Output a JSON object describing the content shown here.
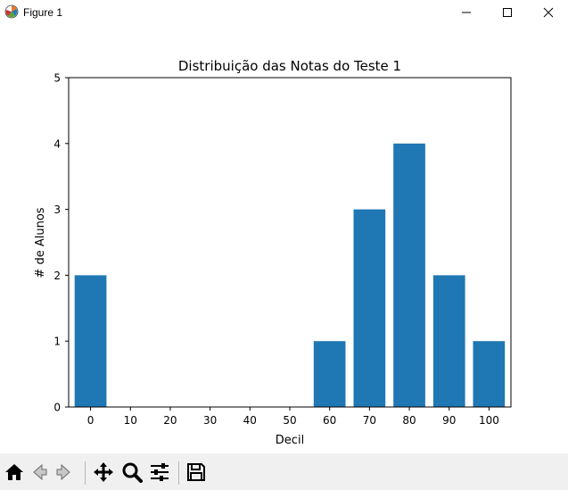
{
  "window": {
    "title": "Figure 1",
    "icon": "matplotlib-icon",
    "controls": [
      "minimize-icon",
      "maximize-icon",
      "close-icon"
    ]
  },
  "chart_data": {
    "type": "bar",
    "title": "Distribuição das Notas do Teste 1",
    "xlabel": "Decil",
    "ylabel": "# de Alunos",
    "categories": [
      "0",
      "10",
      "20",
      "30",
      "40",
      "50",
      "60",
      "70",
      "80",
      "90",
      "100"
    ],
    "x": [
      0,
      10,
      20,
      30,
      40,
      50,
      60,
      70,
      80,
      90,
      100
    ],
    "values": [
      2,
      0,
      0,
      0,
      0,
      0,
      1,
      3,
      4,
      2,
      1
    ],
    "xlim": [
      -5.5,
      105.5
    ],
    "ylim": [
      0,
      5
    ],
    "yticks": [
      0,
      1,
      2,
      3,
      4,
      5
    ],
    "bar_width": 8,
    "bar_color": "#1f77b4",
    "grid": false
  },
  "toolbar": {
    "buttons": [
      {
        "name": "home-button",
        "icon": "home-icon"
      },
      {
        "name": "back-button",
        "icon": "back-arrow-icon"
      },
      {
        "name": "forward-button",
        "icon": "forward-arrow-icon"
      },
      {
        "name": "pan-button",
        "icon": "move-icon"
      },
      {
        "name": "zoom-button",
        "icon": "magnifier-icon"
      },
      {
        "name": "configure-subplots-button",
        "icon": "sliders-icon"
      },
      {
        "name": "save-button",
        "icon": "floppy-disk-icon"
      }
    ]
  }
}
